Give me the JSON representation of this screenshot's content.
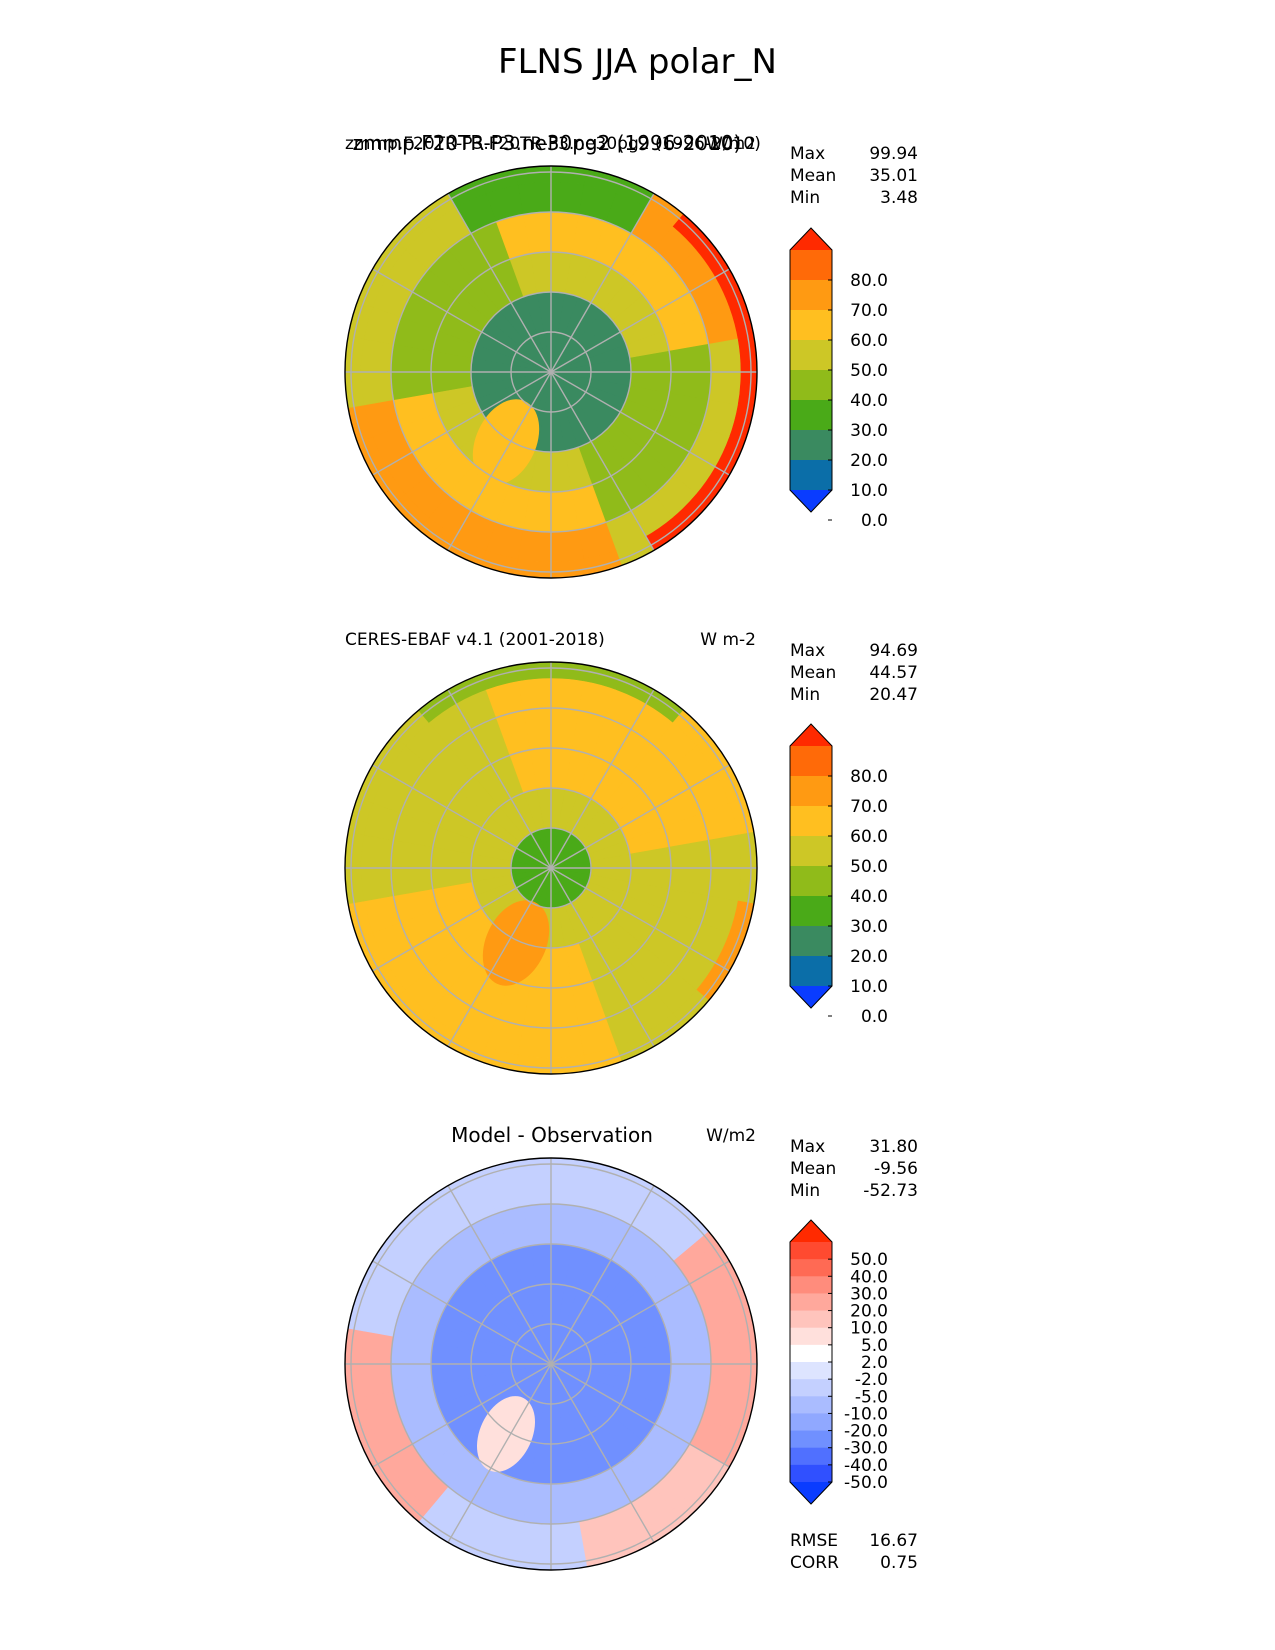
{
  "figure_title": "FLNS JJA polar_N",
  "colors": {
    "abs_levels": [
      "#0a3cff",
      "#0b6ea8",
      "#3a8a60",
      "#4aaa18",
      "#90bb1a",
      "#cdc726",
      "#ffbf20",
      "#ff9a12",
      "#ff6a08",
      "#ff2a00"
    ],
    "diff_levels": [
      "#0a3cff",
      "#3050ff",
      "#5070ff",
      "#7090ff",
      "#90a8ff",
      "#aabcff",
      "#c4d0ff",
      "#dde4ff",
      "#ffffff",
      "#ffe0dc",
      "#ffc4bc",
      "#ffa89c",
      "#ff8c7c",
      "#ff6a54",
      "#ff4a30",
      "#ff2a00"
    ],
    "grid": "#b0b0b0"
  },
  "chart_data": [
    {
      "type": "heatmap",
      "projection": "north-polar-stereographic",
      "title_left": "zmmp.F20TR-P3.F20TR-P3.ne30pg2 (1996-2010)",
      "title_center": "zmmp.F20TR-P3.ne30pg2 (1996-2010)",
      "units": "W/m2",
      "stats": [
        {
          "label": "Max",
          "value": "99.94"
        },
        {
          "label": "Mean",
          "value": "35.01"
        },
        {
          "label": "Min",
          "value": "3.48"
        }
      ],
      "colorbar": {
        "ticks": [
          "80.0",
          "70.0",
          "60.0",
          "50.0",
          "40.0",
          "30.0",
          "20.0",
          "10.0",
          "0.0"
        ],
        "extend": "both",
        "palette": "abs_levels"
      }
    },
    {
      "type": "heatmap",
      "projection": "north-polar-stereographic",
      "title_left": "CERES-EBAF v4.1 (2001-2018)",
      "title_center": "",
      "units": "W m-2",
      "stats": [
        {
          "label": "Max",
          "value": "94.69"
        },
        {
          "label": "Mean",
          "value": "44.57"
        },
        {
          "label": "Min",
          "value": "20.47"
        }
      ],
      "colorbar": {
        "ticks": [
          "80.0",
          "70.0",
          "60.0",
          "50.0",
          "40.0",
          "30.0",
          "20.0",
          "10.0",
          "0.0"
        ],
        "extend": "both",
        "palette": "abs_levels"
      }
    },
    {
      "type": "heatmap",
      "projection": "north-polar-stereographic",
      "title_left": "",
      "title_center": "Model - Observation",
      "units": "W/m2",
      "stats": [
        {
          "label": "Max",
          "value": "31.80"
        },
        {
          "label": "Mean",
          "value": "-9.56"
        },
        {
          "label": "Min",
          "value": "-52.73"
        }
      ],
      "colorbar": {
        "ticks": [
          "50.0",
          "40.0",
          "30.0",
          "20.0",
          "10.0",
          "5.0",
          "2.0",
          "-2.0",
          "-5.0",
          "-10.0",
          "-20.0",
          "-30.0",
          "-40.0",
          "-50.0"
        ],
        "extend": "both",
        "palette": "diff_levels"
      },
      "metrics": [
        {
          "label": "RMSE",
          "value": "16.67"
        },
        {
          "label": "CORR",
          "value": "0.75"
        }
      ]
    }
  ]
}
